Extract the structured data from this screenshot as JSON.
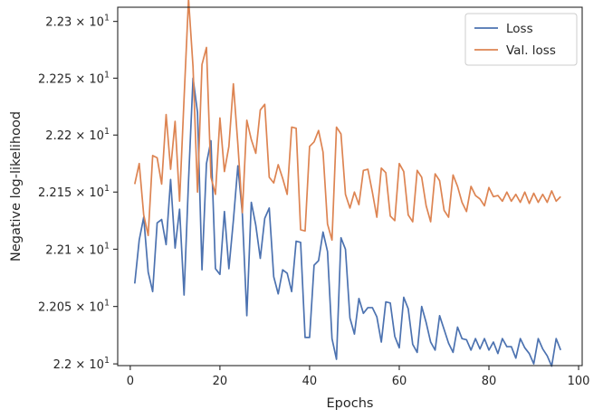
{
  "chart_data": {
    "type": "line",
    "title": "",
    "xlabel": "Epochs",
    "ylabel": "Negative log-likelihood",
    "xlim": [
      -2.8,
      100.8
    ],
    "ylim": [
      21.9985,
      22.3125
    ],
    "y_scale": "log",
    "grid": false,
    "legend_position": "top-right",
    "x_ticks": [
      0,
      20,
      40,
      60,
      80,
      100
    ],
    "x_tick_labels": [
      "0",
      "20",
      "40",
      "60",
      "80",
      "100"
    ],
    "y_ticks": [
      22.0,
      22.05,
      22.1,
      22.15,
      22.2,
      22.25,
      22.3
    ],
    "y_tick_labels": [
      {
        "mantissa": "2.2",
        "exponent": "1"
      },
      {
        "mantissa": "2.205",
        "exponent": "1"
      },
      {
        "mantissa": "2.21",
        "exponent": "1"
      },
      {
        "mantissa": "2.215",
        "exponent": "1"
      },
      {
        "mantissa": "2.22",
        "exponent": "1"
      },
      {
        "mantissa": "2.225",
        "exponent": "1"
      },
      {
        "mantissa": "2.23",
        "exponent": "1"
      }
    ],
    "x": [
      1,
      2,
      3,
      4,
      5,
      6,
      7,
      8,
      9,
      10,
      11,
      12,
      13,
      14,
      15,
      16,
      17,
      18,
      19,
      20,
      21,
      22,
      23,
      24,
      25,
      26,
      27,
      28,
      29,
      30,
      31,
      32,
      33,
      34,
      35,
      36,
      37,
      38,
      39,
      40,
      41,
      42,
      43,
      44,
      45,
      46,
      47,
      48,
      49,
      50,
      51,
      52,
      53,
      54,
      55,
      56,
      57,
      58,
      59,
      60,
      61,
      62,
      63,
      64,
      65,
      66,
      67,
      68,
      69,
      70,
      71,
      72,
      73,
      74,
      75,
      76,
      77,
      78,
      79,
      80,
      81,
      82,
      83,
      84,
      85,
      86,
      87,
      88,
      89,
      90,
      91,
      92,
      93,
      94,
      95,
      96
    ],
    "series": [
      {
        "name": "Loss",
        "color": "#4c72b0",
        "values": [
          22.07,
          22.108,
          22.128,
          22.08,
          22.063,
          22.123,
          22.126,
          22.104,
          22.161,
          22.101,
          22.135,
          22.06,
          22.16,
          22.25,
          22.22,
          22.082,
          22.175,
          22.195,
          22.083,
          22.078,
          22.133,
          22.083,
          22.125,
          22.173,
          22.131,
          22.042,
          22.141,
          22.121,
          22.092,
          22.127,
          22.136,
          22.076,
          22.061,
          22.082,
          22.079,
          22.063,
          22.107,
          22.106,
          22.023,
          22.023,
          22.086,
          22.09,
          22.115,
          22.098,
          22.022,
          22.004,
          22.11,
          22.1,
          22.04,
          22.026,
          22.057,
          22.044,
          22.049,
          22.049,
          22.041,
          22.019,
          22.054,
          22.053,
          22.024,
          22.014,
          22.058,
          22.048,
          22.017,
          22.01,
          22.05,
          22.036,
          22.019,
          22.012,
          22.042,
          22.03,
          22.018,
          22.01,
          22.032,
          22.022,
          22.021,
          22.012,
          22.022,
          22.013,
          22.022,
          22.012,
          22.019,
          22.009,
          22.022,
          22.015,
          22.015,
          22.005,
          22.022,
          22.014,
          22.009,
          22.0,
          22.022,
          22.013,
          22.007,
          21.998,
          22.022,
          22.012
        ]
      },
      {
        "name": "Val. loss",
        "color": "#dd8452",
        "values": [
          22.157,
          22.175,
          22.13,
          22.112,
          22.182,
          22.18,
          22.157,
          22.218,
          22.17,
          22.212,
          22.142,
          22.232,
          22.32,
          22.26,
          22.15,
          22.262,
          22.277,
          22.163,
          22.148,
          22.215,
          22.168,
          22.19,
          22.245,
          22.192,
          22.132,
          22.213,
          22.196,
          22.184,
          22.222,
          22.227,
          22.163,
          22.158,
          22.174,
          22.162,
          22.148,
          22.207,
          22.206,
          22.117,
          22.116,
          22.19,
          22.194,
          22.204,
          22.185,
          22.122,
          22.108,
          22.207,
          22.201,
          22.148,
          22.136,
          22.15,
          22.139,
          22.169,
          22.17,
          22.15,
          22.128,
          22.171,
          22.167,
          22.129,
          22.125,
          22.175,
          22.168,
          22.13,
          22.124,
          22.169,
          22.163,
          22.138,
          22.124,
          22.166,
          22.16,
          22.134,
          22.128,
          22.165,
          22.155,
          22.141,
          22.133,
          22.155,
          22.147,
          22.144,
          22.138,
          22.154,
          22.146,
          22.147,
          22.142,
          22.15,
          22.142,
          22.148,
          22.141,
          22.15,
          22.14,
          22.149,
          22.141,
          22.148,
          22.141,
          22.151,
          22.142,
          22.146
        ]
      }
    ]
  }
}
